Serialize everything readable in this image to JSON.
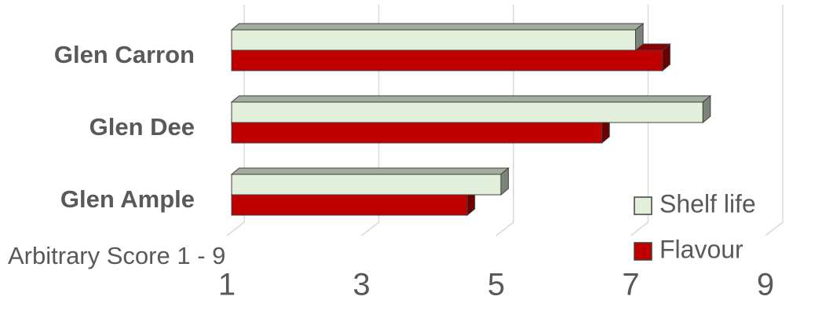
{
  "chart_data": {
    "type": "bar3d",
    "x_label": "Arbitrary Score 1 - 9",
    "categories": [
      "Glen Carron",
      "Glen Dee",
      "Glen Ample"
    ],
    "series": [
      {
        "name": "Shelf life",
        "color": "#e2efda",
        "values": [
          7.0,
          8.0,
          5.0
        ]
      },
      {
        "name": "Flavour",
        "color": "#c00000",
        "values": [
          7.4,
          6.5,
          4.5
        ]
      }
    ],
    "xlim": [
      1,
      9
    ],
    "xticks": [
      1,
      3,
      5,
      7,
      9
    ],
    "grid": true,
    "legend": "bottom-right"
  }
}
